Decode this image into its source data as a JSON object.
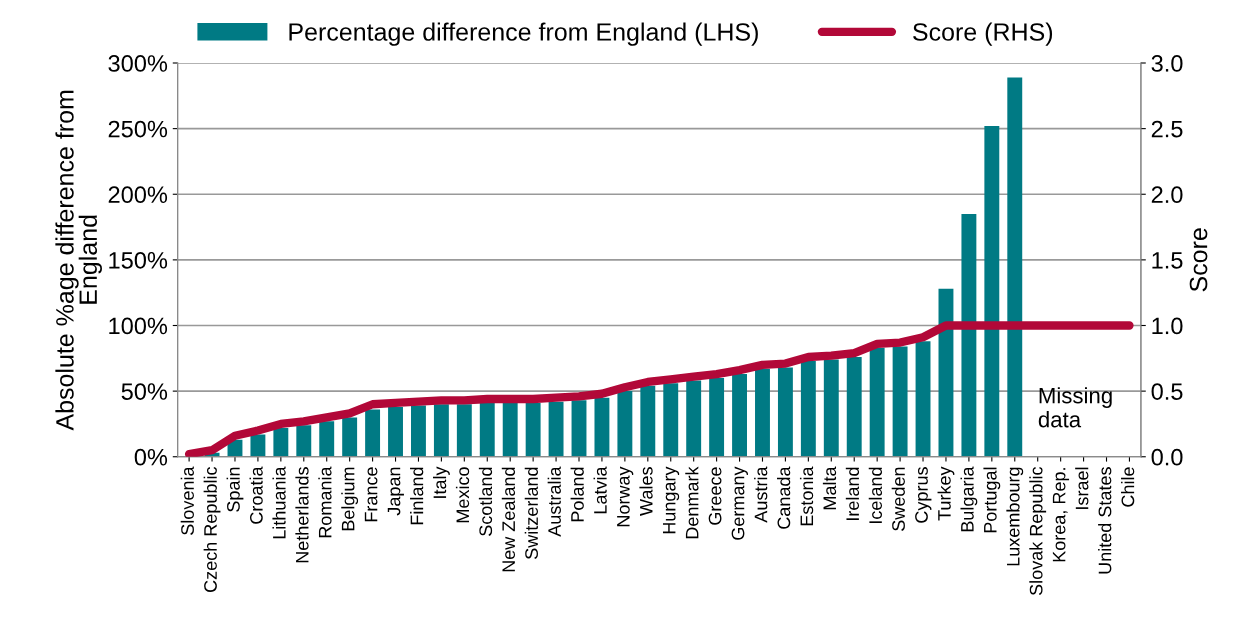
{
  "chart_data": {
    "type": "bar",
    "ylabel": "Absolute %age difference from\nEngland",
    "y2label": "Score",
    "categories": [
      "Slovenia",
      "Czech Republic",
      "Spain",
      "Croatia",
      "Lithuania",
      "Netherlands",
      "Romania",
      "Belgium",
      "France",
      "Japan",
      "Finland",
      "Italy",
      "Mexico",
      "Scotland",
      "New Zealand",
      "Switzerland",
      "Australia",
      "Poland",
      "Latvia",
      "Norway",
      "Wales",
      "Hungary",
      "Denmark",
      "Greece",
      "Germany",
      "Austria",
      "Canada",
      "Estonia",
      "Malta",
      "Ireland",
      "Iceland",
      "Sweden",
      "Cyprus",
      "Turkey",
      "Bulgaria",
      "Portugal",
      "Luxembourg",
      "Slovak Republic",
      "Korea, Rep.",
      "Israel",
      "United States",
      "Chile"
    ],
    "series": [
      {
        "name": "Percentage difference from England (LHS)",
        "color": "#007a84",
        "values": [
          0,
          3,
          13,
          17,
          22,
          24,
          27,
          30,
          36,
          38,
          39,
          40,
          40,
          41,
          41,
          41,
          42,
          43,
          45,
          50,
          54,
          56,
          58,
          60,
          63,
          67,
          68,
          73,
          74,
          76,
          83,
          84,
          88,
          128,
          185,
          252,
          289,
          null,
          null,
          null,
          null,
          null
        ]
      },
      {
        "name": "Score (RHS)",
        "type": "line",
        "axis": "y2",
        "color": "#b20838",
        "values": [
          0.02,
          0.05,
          0.16,
          0.2,
          0.25,
          0.27,
          0.3,
          0.33,
          0.4,
          0.41,
          0.42,
          0.43,
          0.43,
          0.44,
          0.44,
          0.44,
          0.45,
          0.46,
          0.48,
          0.53,
          0.57,
          0.59,
          0.61,
          0.63,
          0.66,
          0.7,
          0.71,
          0.76,
          0.77,
          0.79,
          0.86,
          0.87,
          0.91,
          1.0,
          1.0,
          1.0,
          1.0,
          1.0,
          1.0,
          1.0,
          1.0,
          1.0
        ]
      }
    ],
    "ylim": [
      0,
      300
    ],
    "yticks": [
      {
        "value": 0,
        "label": "0%"
      },
      {
        "value": 50,
        "label": "50%"
      },
      {
        "value": 100,
        "label": "100%"
      },
      {
        "value": 150,
        "label": "150%"
      },
      {
        "value": 200,
        "label": "200%"
      },
      {
        "value": 250,
        "label": "250%"
      },
      {
        "value": 300,
        "label": "300%"
      }
    ],
    "y2lim": [
      0,
      3
    ],
    "y2ticks": [
      {
        "value": 0,
        "label": "0.0"
      },
      {
        "value": 0.5,
        "label": "0.5"
      },
      {
        "value": 1,
        "label": "1.0"
      },
      {
        "value": 1.5,
        "label": "1.5"
      },
      {
        "value": 2,
        "label": "2.0"
      },
      {
        "value": 2.5,
        "label": "2.5"
      },
      {
        "value": 3,
        "label": "3.0"
      }
    ],
    "grid": "y",
    "legend": "top",
    "marker": "none",
    "line_style": "solid",
    "annotations": [
      "Missing\ndata"
    ]
  }
}
